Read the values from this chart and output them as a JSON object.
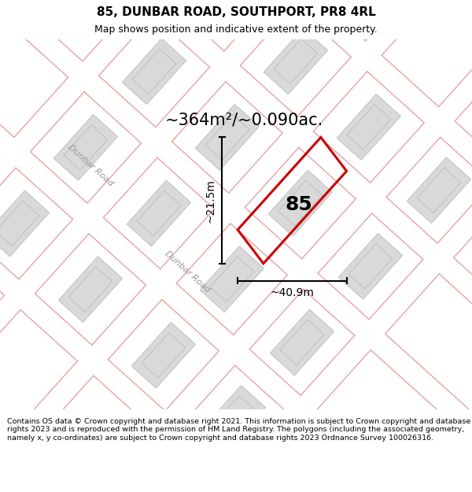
{
  "title": "85, DUNBAR ROAD, SOUTHPORT, PR8 4RL",
  "subtitle": "Map shows position and indicative extent of the property.",
  "footer": "Contains OS data © Crown copyright and database right 2021. This information is subject to Crown copyright and database rights 2023 and is reproduced with the permission of HM Land Registry. The polygons (including the associated geometry, namely x, y co-ordinates) are subject to Crown copyright and database rights 2023 Ordnance Survey 100026316.",
  "area_label": "~364m²/~0.090ac.",
  "property_number": "85",
  "dim_width": "~40.9m",
  "dim_height": "~21.5m",
  "road_label1": "Dunbar Road",
  "road_label2": "Dunbar Road",
  "map_bg": "#f2eded",
  "plot_outline_color": "#cc0000",
  "building_fill": "#d9d9d9",
  "building_outline": "#bbbbbb",
  "road_fill": "#ffffff",
  "road_stripe_color": "#e8a8a8",
  "title_fontsize": 11,
  "subtitle_fontsize": 9,
  "footer_fontsize": 6.8,
  "area_fontsize": 15,
  "dim_fontsize": 10,
  "number_fontsize": 18
}
